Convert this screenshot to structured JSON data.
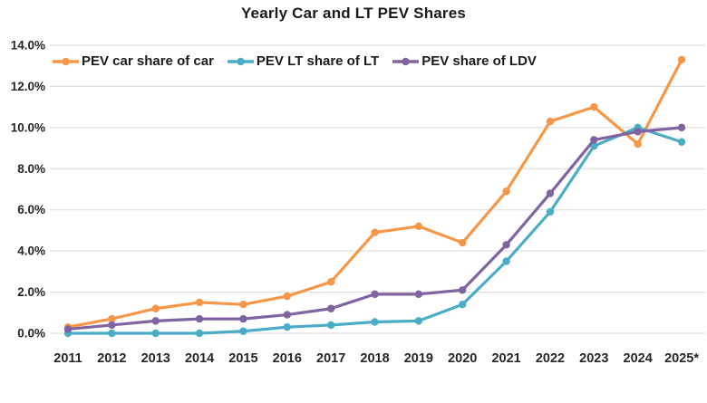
{
  "chart_data": {
    "type": "line",
    "title": "Yearly Car and LT PEV Shares",
    "categories": [
      "2011",
      "2012",
      "2013",
      "2014",
      "2015",
      "2016",
      "2017",
      "2018",
      "2019",
      "2020",
      "2021",
      "2022",
      "2023",
      "2024",
      "2025*"
    ],
    "series": [
      {
        "name": "PEV car share of car",
        "color": "#F79646",
        "values": [
          0.3,
          0.7,
          1.2,
          1.5,
          1.4,
          1.8,
          2.5,
          4.9,
          5.2,
          4.4,
          6.9,
          10.3,
          11.0,
          9.2,
          13.3
        ]
      },
      {
        "name": "PEV LT share of LT",
        "color": "#4BACC6",
        "values": [
          0.0,
          0.0,
          0.0,
          0.0,
          0.1,
          0.3,
          0.4,
          0.55,
          0.6,
          1.4,
          3.5,
          5.9,
          9.1,
          10.0,
          9.3
        ]
      },
      {
        "name": "PEV share of LDV",
        "color": "#8064A2",
        "values": [
          0.2,
          0.4,
          0.6,
          0.7,
          0.7,
          0.9,
          1.2,
          1.9,
          1.9,
          2.1,
          4.3,
          6.8,
          9.4,
          9.8,
          10.0
        ]
      }
    ],
    "xlabel": "",
    "ylabel": "",
    "ylim": [
      0,
      14
    ],
    "ytick_step": 2,
    "ytick_labels": [
      "0.0%",
      "2.0%",
      "4.0%",
      "6.0%",
      "8.0%",
      "10.0%",
      "12.0%",
      "14.0%"
    ],
    "grid": "horizontal",
    "legend_position": "inside-top-left",
    "colors": {
      "gridline": "#D9D9D9",
      "text": "#262626",
      "background": "#FFFFFF"
    }
  }
}
